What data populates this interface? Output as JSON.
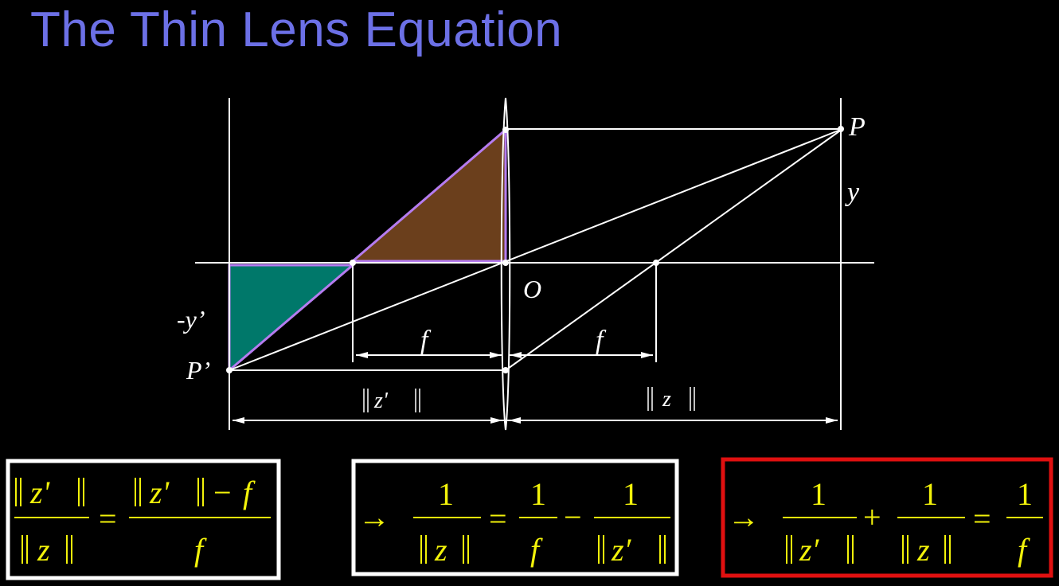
{
  "title": "The Thin Lens Equation",
  "diagram": {
    "labels": {
      "P": "P",
      "y": "y",
      "O": "O",
      "neg_y_prime": "-y’",
      "P_prime": "P’",
      "f_left": "f",
      "f_right": "f",
      "z_prime_dist": "z'",
      "z_dist": "z"
    },
    "colors": {
      "lines": "#ffffff",
      "brown_triangle": "#6b3f1c",
      "teal_triangle": "#00786a",
      "triangle_outline": "#b57cf0"
    }
  },
  "equations": {
    "eq1": {
      "num_left": "z'",
      "den_left": "z",
      "equals": "=",
      "num_right_term": "z'",
      "num_right_minus": "−",
      "num_right_f": "f",
      "den_right": "f"
    },
    "eq2": {
      "arrow": "→",
      "one_a": "1",
      "den_a": "z",
      "equals": "=",
      "one_b": "1",
      "den_b": "f",
      "minus": "−",
      "one_c": "1",
      "den_c": "z′"
    },
    "eq3": {
      "arrow": "→",
      "one_a": "1",
      "den_a": "z′",
      "plus": "+",
      "one_b": "1",
      "den_b": "z",
      "equals": "=",
      "one_c": "1",
      "den_c": "f"
    },
    "box_colors": {
      "eq1": "#ffffff",
      "eq2": "#ffffff",
      "eq3": "#e01010"
    }
  }
}
